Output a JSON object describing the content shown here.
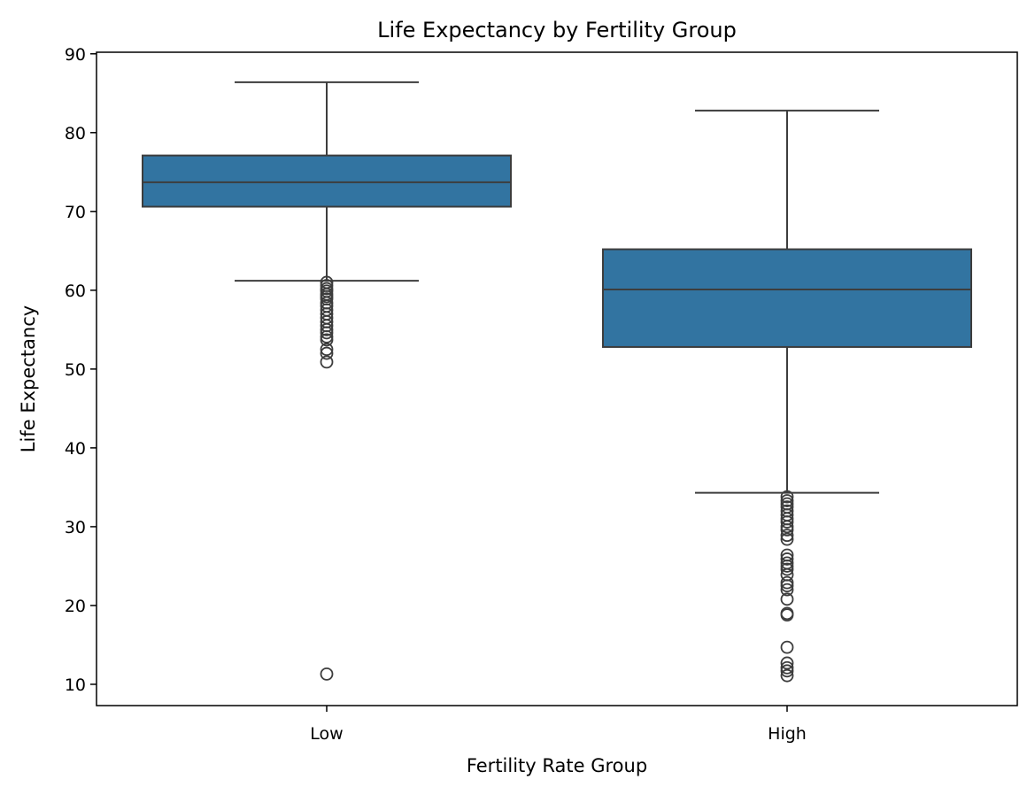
{
  "chart_data": {
    "type": "box",
    "title": "Life Expectancy by Fertility Group",
    "xlabel": "Fertility Rate Group",
    "ylabel": "Life Expectancy",
    "ylim": [
      7.3,
      90.2
    ],
    "yticks": [
      10,
      20,
      30,
      40,
      50,
      60,
      70,
      80,
      90
    ],
    "grid": false,
    "box_color": "#3274a1",
    "line_color": "#3d3d3d",
    "categories": [
      "Low",
      "High"
    ],
    "boxes": [
      {
        "category": "Low",
        "whisker_low": 61.2,
        "q1": 70.6,
        "median": 73.7,
        "q3": 77.1,
        "whisker_high": 86.4,
        "outliers": [
          61.0,
          60.6,
          60.2,
          59.9,
          59.5,
          59.2,
          58.9,
          58.4,
          58.0,
          57.5,
          57.0,
          56.5,
          56.0,
          55.5,
          55.0,
          54.6,
          54.1,
          53.7,
          52.5,
          52.0,
          50.9,
          11.3
        ]
      },
      {
        "category": "High",
        "whisker_low": 34.3,
        "q1": 52.8,
        "median": 60.1,
        "q3": 65.2,
        "whisker_high": 82.8,
        "outliers": [
          33.8,
          33.3,
          32.9,
          32.5,
          32.0,
          31.5,
          31.0,
          30.6,
          30.0,
          29.6,
          28.9,
          28.4,
          26.4,
          25.9,
          25.4,
          25.0,
          24.6,
          23.9,
          22.9,
          22.5,
          22.0,
          20.8,
          19.0,
          18.8,
          14.7,
          12.7,
          12.1,
          11.7,
          11.1
        ]
      }
    ]
  }
}
